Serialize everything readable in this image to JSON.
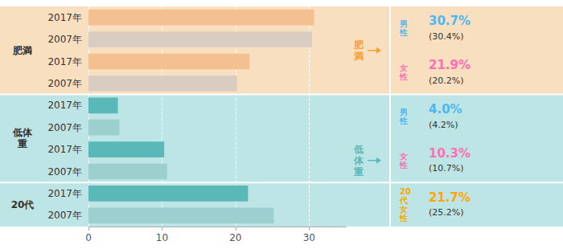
{
  "chart_data": {
    "type": "bar",
    "orientation": "horizontal",
    "categories": [
      "2017年",
      "2007年",
      "2017年",
      "2007年",
      "2017年",
      "2007年",
      "2017年",
      "2007年",
      "2017年",
      "2007年"
    ],
    "values": [
      30.7,
      30.4,
      21.9,
      20.2,
      4.0,
      4.2,
      10.3,
      10.7,
      21.7,
      25.2
    ],
    "colors": [
      "#f5c090",
      "#d9ccc0",
      "#f5c090",
      "#d9ccc0",
      "#5bb8b8",
      "#9ecfcf",
      "#5bb8b8",
      "#9ecfcf",
      "#5bb8b8",
      "#9ecfcf"
    ],
    "xlim": [
      0,
      35
    ],
    "xticks": [
      0,
      10,
      20,
      30
    ],
    "grid": true,
    "groups": [
      "肥満",
      "肥満",
      "肥満",
      "肥満",
      "低体\n重",
      "低体\n重",
      "低体\n重",
      "低体\n重",
      "20代",
      "20代"
    ],
    "group_colors": {
      "肥満": "#f8dfc0",
      "低体\n重": "#bde5e5",
      "20代": "#bde5e5"
    },
    "side_labels": [
      {
        "text": "肥\n満",
        "color": "#f5a030",
        "groups": [
          "肥満"
        ]
      },
      {
        "text": "低\n体\n重",
        "color": "#5bb8b8",
        "groups": [
          "低体\n重",
          "20代"
        ]
      }
    ],
    "annotations": [
      {
        "label": "男\n性",
        "value": "30.7%",
        "sub": "(30.4%)",
        "color": "#4db8f0"
      },
      {
        "label": "女\n性",
        "value": "21.9%",
        "sub": "(20.2%)",
        "color": "#ff6eb4"
      },
      {
        "label": "男\n性",
        "value": "4.0%",
        "sub": "(4.2%)",
        "color": "#4db8f0"
      },
      {
        "label": "女\n性",
        "value": "10.3%",
        "sub": "(10.7%)",
        "color": "#ff6eb4"
      },
      {
        "label": "20\n代\n女\n性",
        "value": "21.7%",
        "sub": "(25.2%)",
        "color": "#ffa500"
      }
    ]
  }
}
